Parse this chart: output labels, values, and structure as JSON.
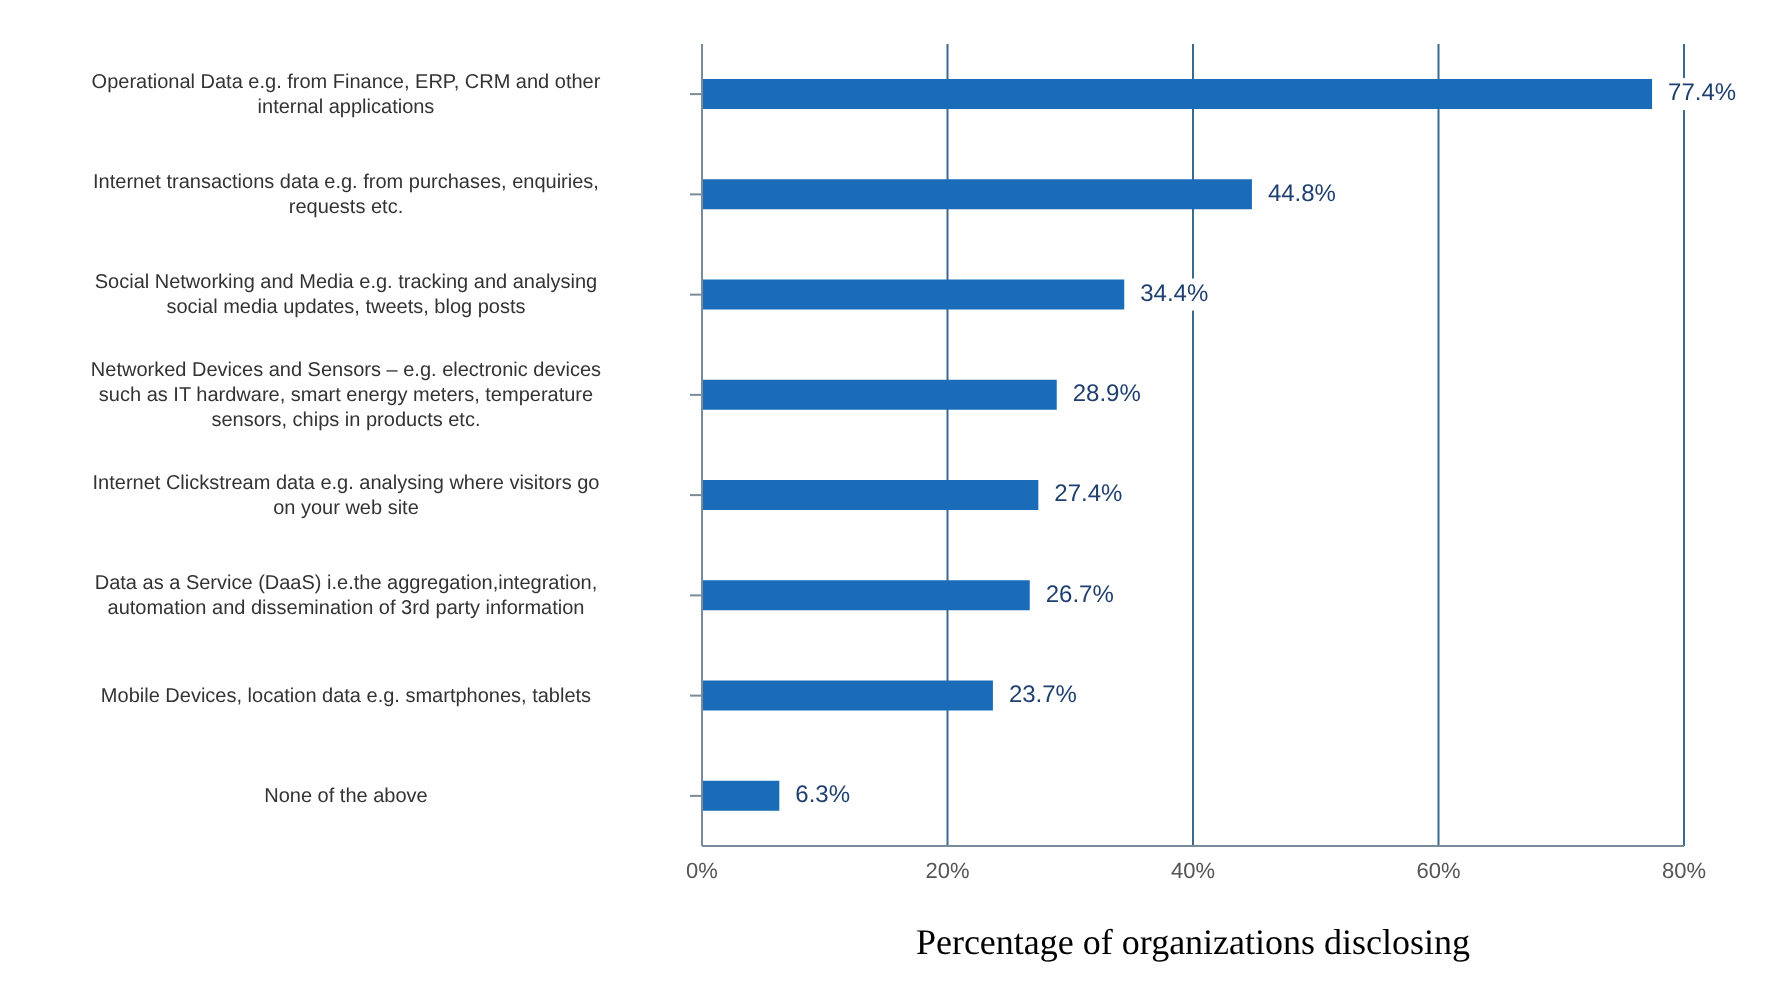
{
  "chart_data": {
    "type": "bar",
    "orientation": "horizontal",
    "xlabel": "Percentage of organizations disclosing",
    "categories": [
      "Operational Data e.g. from Finance, ERP, CRM and other internal applications",
      "Internet transactions data e.g. from purchases, enquiries, requests etc.",
      "Social Networking and Media e.g. tracking and analysing social media updates, tweets, blog posts",
      "Networked Devices and Sensors – e.g. electronic devices such as IT hardware, smart energy meters, temperature sensors, chips in products etc.",
      "Internet Clickstream data e.g. analysing where visitors go on your web site",
      "Data as a Service (DaaS) i.e.the aggregation,integration, automation and dissemination of 3rd party information",
      "Mobile Devices, location data e.g. smartphones, tablets",
      "None of the above"
    ],
    "values": [
      77.4,
      44.8,
      34.4,
      28.9,
      27.4,
      26.7,
      23.7,
      6.3
    ],
    "value_labels": [
      "77.4%",
      "44.8%",
      "34.4%",
      "28.9%",
      "27.4%",
      "26.7%",
      "23.7%",
      "6.3%"
    ],
    "color": "#1a6cb8",
    "xlim": [
      0,
      80
    ],
    "xticks": [
      {
        "value": 0,
        "label": "0%"
      },
      {
        "value": 20,
        "label": "20%"
      },
      {
        "value": 40,
        "label": "40%"
      },
      {
        "value": 60,
        "label": "60%"
      },
      {
        "value": 80,
        "label": "80%"
      }
    ],
    "grid": "x"
  }
}
